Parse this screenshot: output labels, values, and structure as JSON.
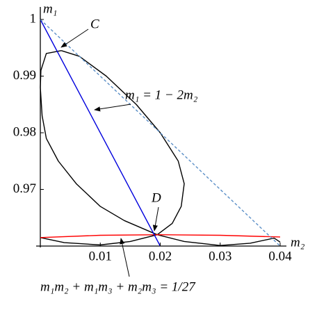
{
  "chart_data": {
    "type": "line",
    "x_label": "m₂",
    "y_label": "m₁",
    "xlim": [
      0,
      0.04
    ],
    "ylim": [
      0.96,
      1
    ],
    "xticks": [
      0.01,
      0.02,
      0.03,
      0.04
    ],
    "yticks": [
      0.97,
      0.98,
      0.99,
      1
    ],
    "annotations": [
      "C",
      "D",
      "m₁ = 1 − 2m₂",
      "m₁m₂ + m₁m₃ + m₂m₃ = 1/27"
    ],
    "series": [
      {
        "color": "#000000",
        "x": [
          0.0035,
          0.001,
          0.0001,
          0,
          0.0003,
          0.001,
          0.003,
          0.006,
          0.01,
          0.014,
          0.0195,
          0.022,
          0.0235,
          0.024,
          0.023,
          0.02,
          0.016,
          0.011,
          0.0065,
          0.0035
        ],
        "values": [
          0.9945,
          0.994,
          0.991,
          0.988,
          0.983,
          0.979,
          0.975,
          0.971,
          0.967,
          0.9645,
          0.962,
          0.964,
          0.967,
          0.971,
          0.975,
          0.98,
          0.985,
          0.99,
          0.9935,
          0.9945
        ]
      },
      {
        "color": "#000000",
        "x": [
          0,
          0.004,
          0.01,
          0.015,
          0.0195,
          0.024,
          0.03,
          0.035,
          0.039,
          0.04
        ],
        "values": [
          0.9615,
          0.9606,
          0.9602,
          0.9608,
          0.962,
          0.9608,
          0.9601,
          0.9605,
          0.9614,
          0.9607
        ]
      },
      {
        "color": "#ff0000",
        "x": [
          0,
          0.01,
          0.02,
          0.03,
          0.04
        ],
        "values": [
          0.9615,
          0.9619,
          0.962,
          0.9619,
          0.9616
        ]
      },
      {
        "color": "#0000dd",
        "x": [
          0,
          0.02
        ],
        "values": [
          1,
          0.96
        ]
      },
      {
        "color": "#5b8fc7",
        "dashed": true,
        "x": [
          0,
          0.04
        ],
        "values": [
          1,
          0.96
        ]
      }
    ]
  }
}
